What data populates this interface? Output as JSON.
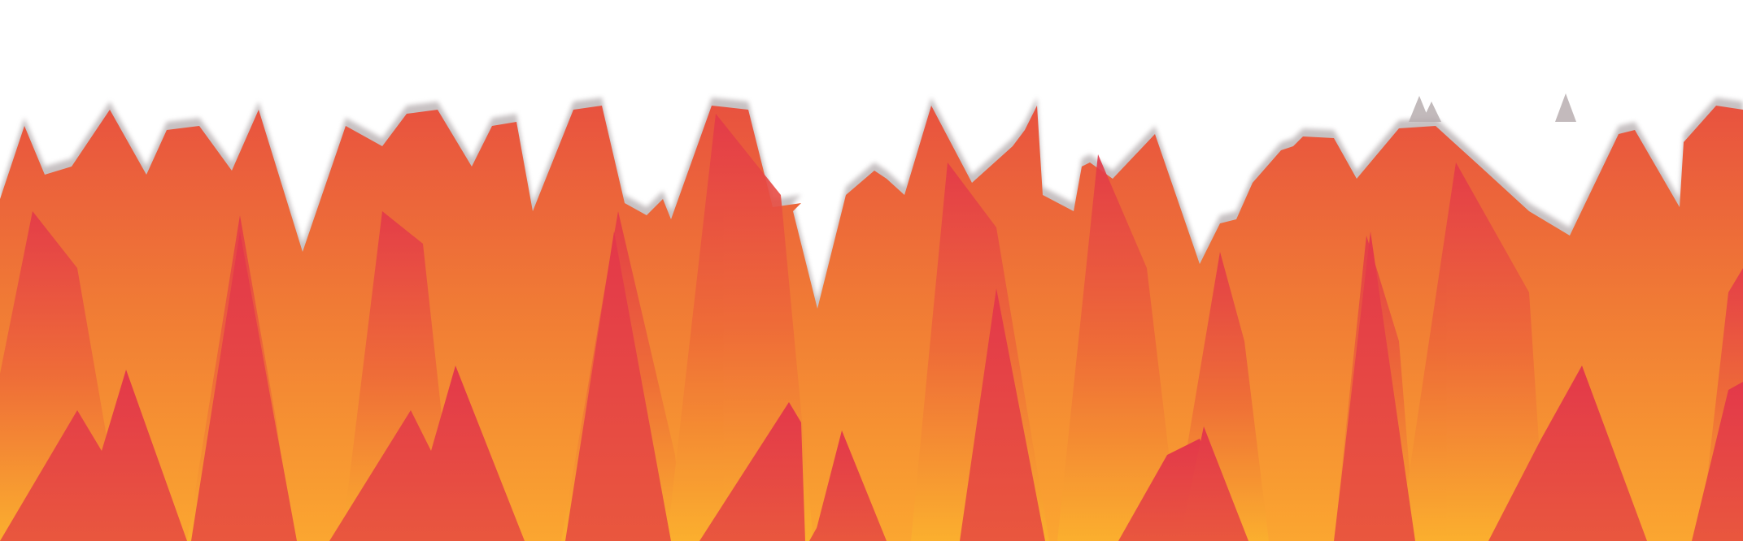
{
  "scene": {
    "background": "#ffffff",
    "palette": {
      "red": "#e3384a",
      "red_orange": "#e8523f",
      "orange": "#f07a35",
      "amber": "#fba630",
      "yellow_orange": "#fbb02e",
      "edge_shadow": "#9a8f92"
    }
  }
}
